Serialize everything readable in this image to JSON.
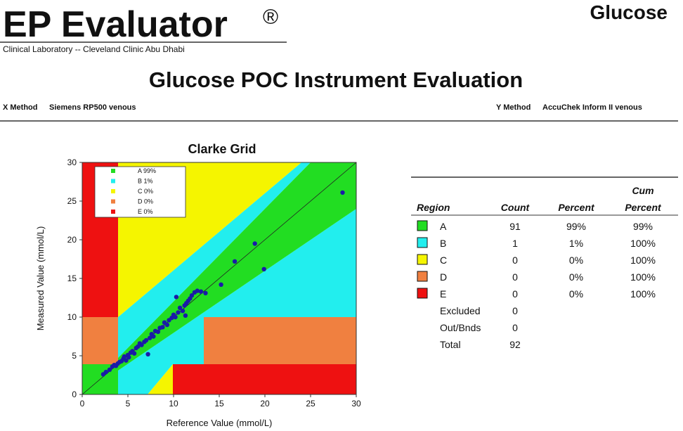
{
  "header": {
    "brand": "EP Evaluator",
    "mark": "®",
    "analyte": "Glucose",
    "lab": "Clinical Laboratory -- Cleveland Clinic Abu Dhabi",
    "title": "Glucose POC Instrument Evaluation",
    "x_method_label": "X Method",
    "x_method": "Siemens RP500 venous",
    "y_method_label": "Y Method",
    "y_method": "AccuChek Inform II venous"
  },
  "chart_data": {
    "type": "scatter",
    "title": "Clarke Grid",
    "x_label": "Reference Value (mmol/L)",
    "y_label": "Measured Value (mmol/L)",
    "xlim": [
      0,
      30
    ],
    "ylim": [
      0,
      30
    ],
    "xticks": [
      0,
      5,
      10,
      15,
      20,
      25,
      30
    ],
    "yticks": [
      0,
      5,
      10,
      15,
      20,
      25,
      30
    ],
    "color": "#1a1aa8",
    "x": [
      2.3,
      2.6,
      3.0,
      3.3,
      3.5,
      3.7,
      3.9,
      4.1,
      4.3,
      4.5,
      4.6,
      4.8,
      5.0,
      5.1,
      5.3,
      5.5,
      5.7,
      5.9,
      6.1,
      6.3,
      6.5,
      6.8,
      7.0,
      7.2,
      7.4,
      7.6,
      7.8,
      8.0,
      8.3,
      8.5,
      8.8,
      9.0,
      9.3,
      9.5,
      9.8,
      10.0,
      10.2,
      10.5,
      10.7,
      11.0,
      11.2,
      11.4,
      11.6,
      11.8,
      11.3,
      12.0,
      12.3,
      12.6,
      13.0,
      13.5,
      10.3,
      15.2,
      16.7,
      18.9,
      19.9,
      28.5
    ],
    "values": [
      2.6,
      2.9,
      3.2,
      3.6,
      3.8,
      3.7,
      4.0,
      4.2,
      4.3,
      4.6,
      4.9,
      4.4,
      5.1,
      4.8,
      5.4,
      5.6,
      5.3,
      6.0,
      6.2,
      6.6,
      6.4,
      6.8,
      7.0,
      5.2,
      7.3,
      7.8,
      7.5,
      8.2,
      8.1,
      8.6,
      8.7,
      9.3,
      9.0,
      9.6,
      9.9,
      10.3,
      10.0,
      10.6,
      11.2,
      10.8,
      11.5,
      11.8,
      12.1,
      12.4,
      10.2,
      12.8,
      13.2,
      13.4,
      13.3,
      13.1,
      12.6,
      14.2,
      17.2,
      19.5,
      16.2,
      26.1
    ],
    "legend": [
      {
        "name": "A 99%",
        "color": "#22dd22"
      },
      {
        "name": "B 1%",
        "color": "#22eeee"
      },
      {
        "name": "C 0%",
        "color": "#f5f500"
      },
      {
        "name": "D 0%",
        "color": "#f08040"
      },
      {
        "name": "E 0%",
        "color": "#ee1111"
      }
    ]
  },
  "table": {
    "header": [
      "Region",
      "Count",
      "Percent",
      [
        "Cum",
        "Percent"
      ]
    ],
    "rows": [
      [
        "A",
        "91",
        "99%",
        "99%"
      ],
      [
        "B",
        "1",
        "1%",
        "100%"
      ],
      [
        "C",
        "0",
        "0%",
        "100%"
      ],
      [
        "D",
        "0",
        "0%",
        "100%"
      ],
      [
        "E",
        "0",
        "0%",
        "100%"
      ],
      [
        "Excluded",
        "0"
      ],
      [
        "Out/Bnds",
        "0"
      ],
      [
        "Total",
        "92"
      ]
    ]
  }
}
